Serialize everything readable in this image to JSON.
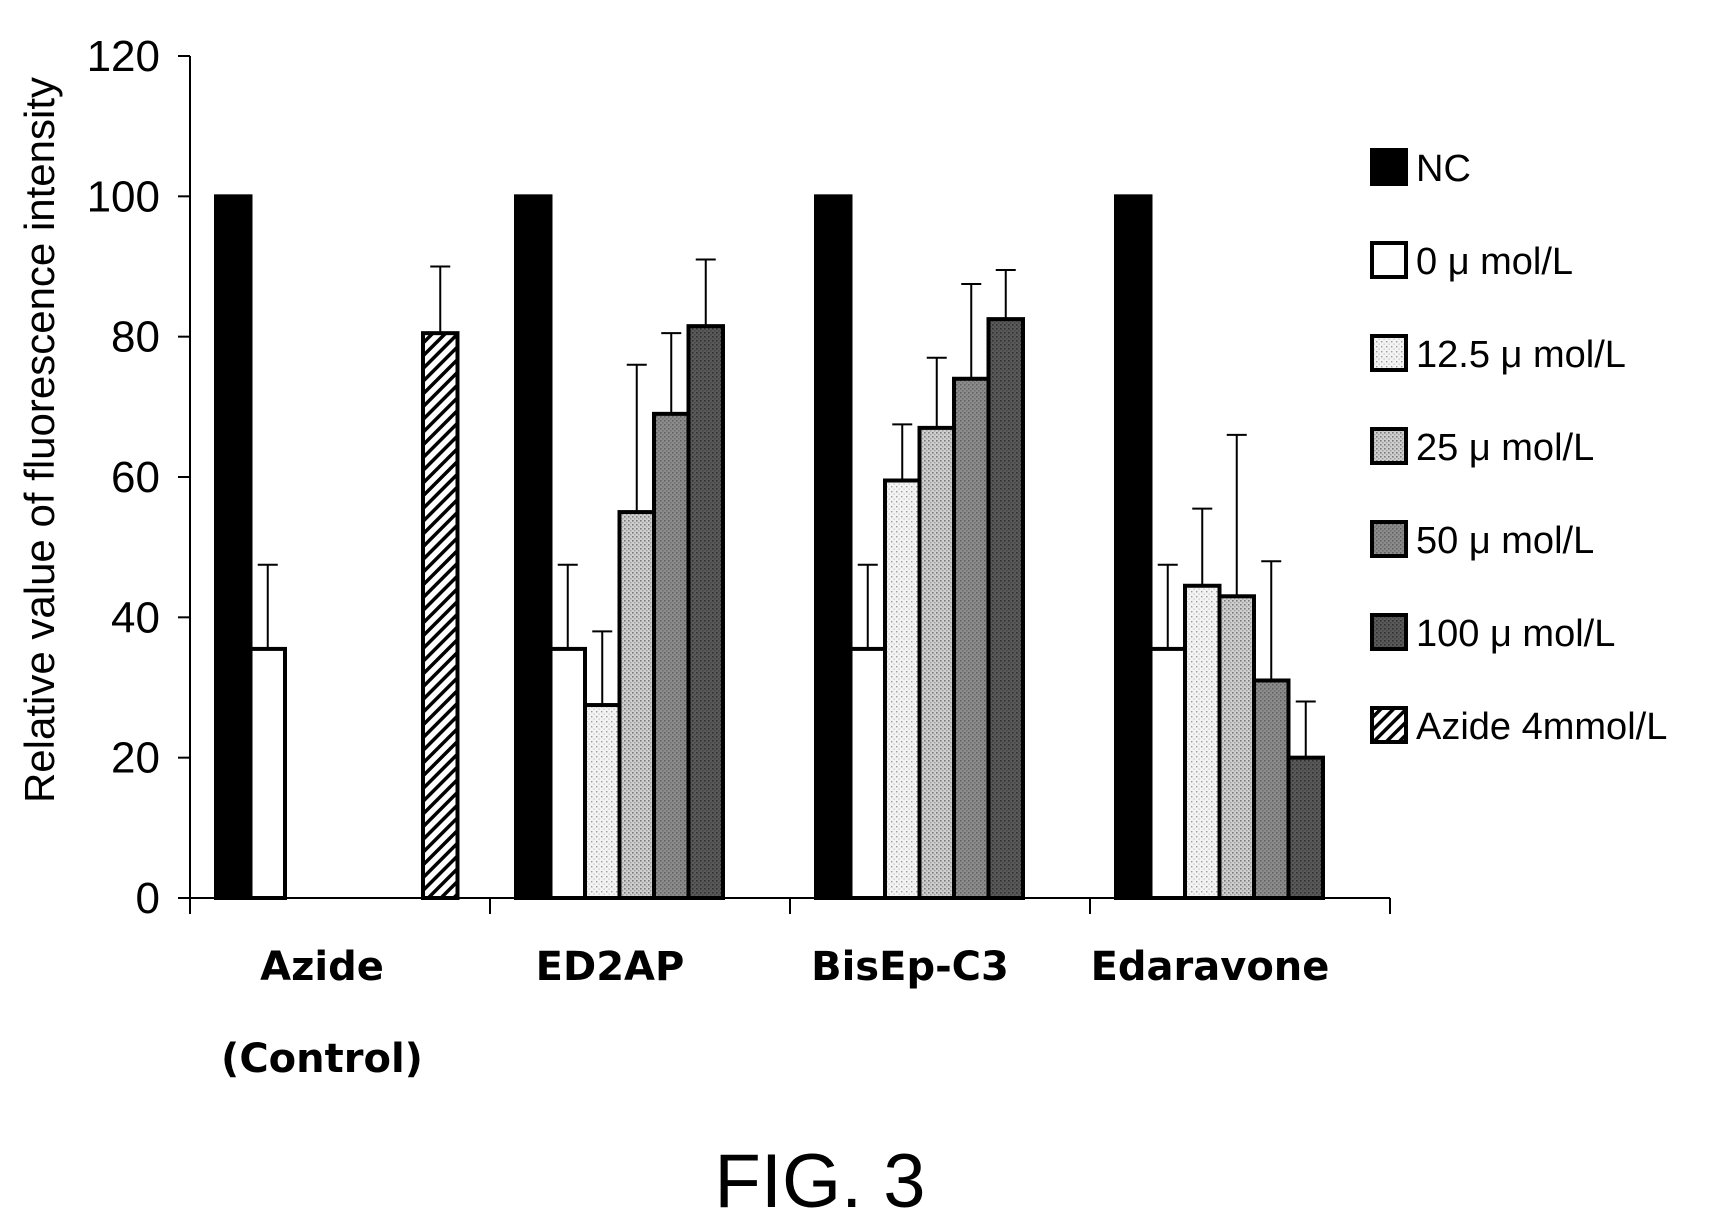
{
  "chart_data": {
    "type": "bar",
    "ylabel": "Relative value of fluorescence intensity",
    "ylim": [
      0,
      120
    ],
    "yticks": [
      0,
      20,
      40,
      60,
      80,
      100,
      120
    ],
    "grid": false,
    "legend_position": "right",
    "categories": [
      {
        "lines": [
          "Azide",
          "(Control)"
        ]
      },
      {
        "lines": [
          "ED2AP"
        ]
      },
      {
        "lines": [
          "BisEp-C3"
        ]
      },
      {
        "lines": [
          "Edaravone"
        ]
      }
    ],
    "series": [
      {
        "name": "NC",
        "pattern": "solid-black",
        "values": [
          100,
          100,
          100,
          100
        ],
        "errors": [
          null,
          null,
          null,
          null
        ]
      },
      {
        "name": "0 μ mol/L",
        "pattern": "white",
        "values": [
          35.5,
          35.5,
          35.5,
          35.5
        ],
        "errors": [
          12,
          12,
          12,
          12
        ]
      },
      {
        "name": "12.5 μ mol/L",
        "pattern": "light-dots",
        "values": [
          null,
          27.5,
          59.5,
          44.5
        ],
        "errors": [
          null,
          10.5,
          8,
          11
        ]
      },
      {
        "name": "25 μ mol/L",
        "pattern": "medium-dots",
        "values": [
          null,
          55,
          67,
          43
        ],
        "errors": [
          null,
          21,
          10,
          23
        ]
      },
      {
        "name": "50 μ mol/L",
        "pattern": "dark-gray",
        "values": [
          null,
          69,
          74,
          31
        ],
        "errors": [
          null,
          11.5,
          13.5,
          17
        ]
      },
      {
        "name": "100 μ mol/L",
        "pattern": "darker-gray",
        "values": [
          null,
          81.5,
          82.5,
          20
        ],
        "errors": [
          null,
          9.5,
          7,
          8
        ]
      },
      {
        "name": "Azide 4mmol/L",
        "pattern": "hatched",
        "values": [
          80.5,
          null,
          null,
          null
        ],
        "errors": [
          9.5,
          null,
          null,
          null
        ]
      }
    ],
    "caption": "FIG. 3"
  }
}
